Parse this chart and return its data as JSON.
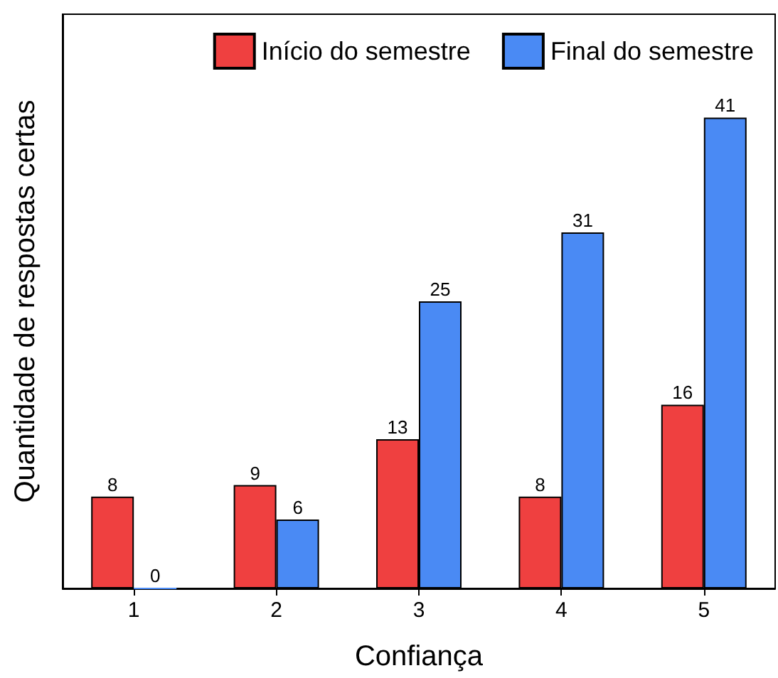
{
  "chart_data": {
    "type": "bar",
    "xlabel": "Confiança",
    "ylabel": "Quantidade de respostas certas",
    "categories": [
      "1",
      "2",
      "3",
      "4",
      "5"
    ],
    "series": [
      {
        "name": "Início do semestre",
        "color": "#ef4040",
        "values": [
          8,
          9,
          13,
          8,
          16
        ]
      },
      {
        "name": "Final do semestre",
        "color": "#4a8af4",
        "values": [
          0,
          6,
          25,
          31,
          41
        ]
      }
    ],
    "data_labels": true,
    "legend": "top right",
    "grid": false,
    "tick_labels": "x"
  }
}
